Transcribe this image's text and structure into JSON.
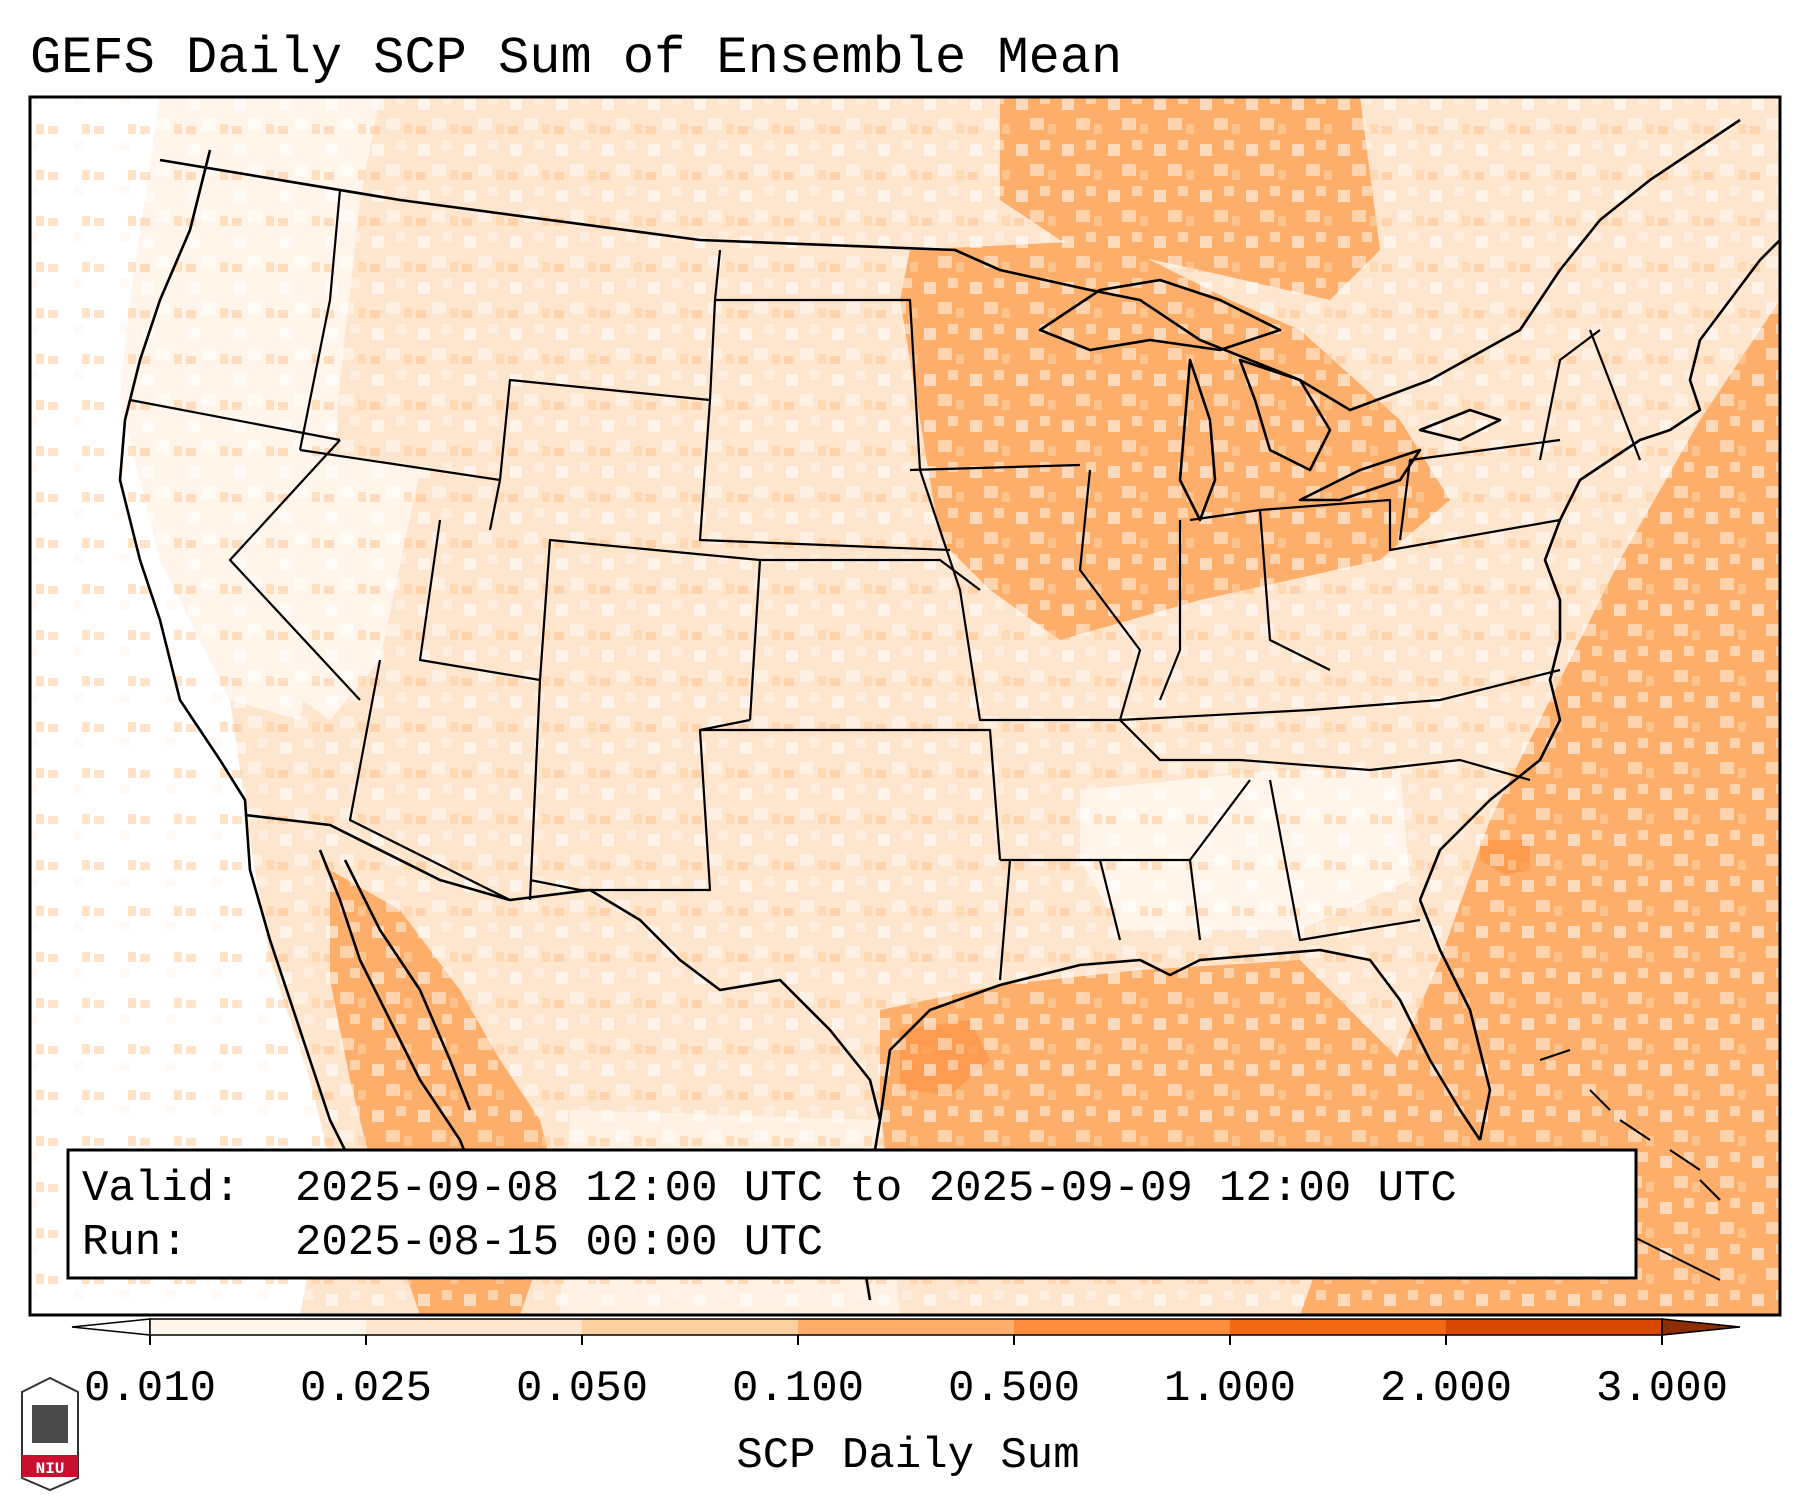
{
  "title": "GEFS Daily SCP Sum of Ensemble Mean",
  "info_box": {
    "valid_label": "Valid:",
    "valid_value": "2025-09-08 12:00 UTC to 2025-09-09 12:00 UTC",
    "run_label": "Run:",
    "run_value": "2025-08-15 00:00 UTC"
  },
  "colorbar": {
    "label": "SCP Daily Sum",
    "ticks": [
      "0.010",
      "0.025",
      "0.050",
      "0.100",
      "0.500",
      "1.000",
      "2.000",
      "3.000"
    ],
    "colors": [
      "#fff5eb",
      "#fee6ce",
      "#fdd0a2",
      "#fdae6b",
      "#fd8d3c",
      "#f16913",
      "#d94801"
    ],
    "under_color": "#ffffff",
    "over_color": "#8c2d04"
  },
  "logo": {
    "text": "NIU"
  }
}
